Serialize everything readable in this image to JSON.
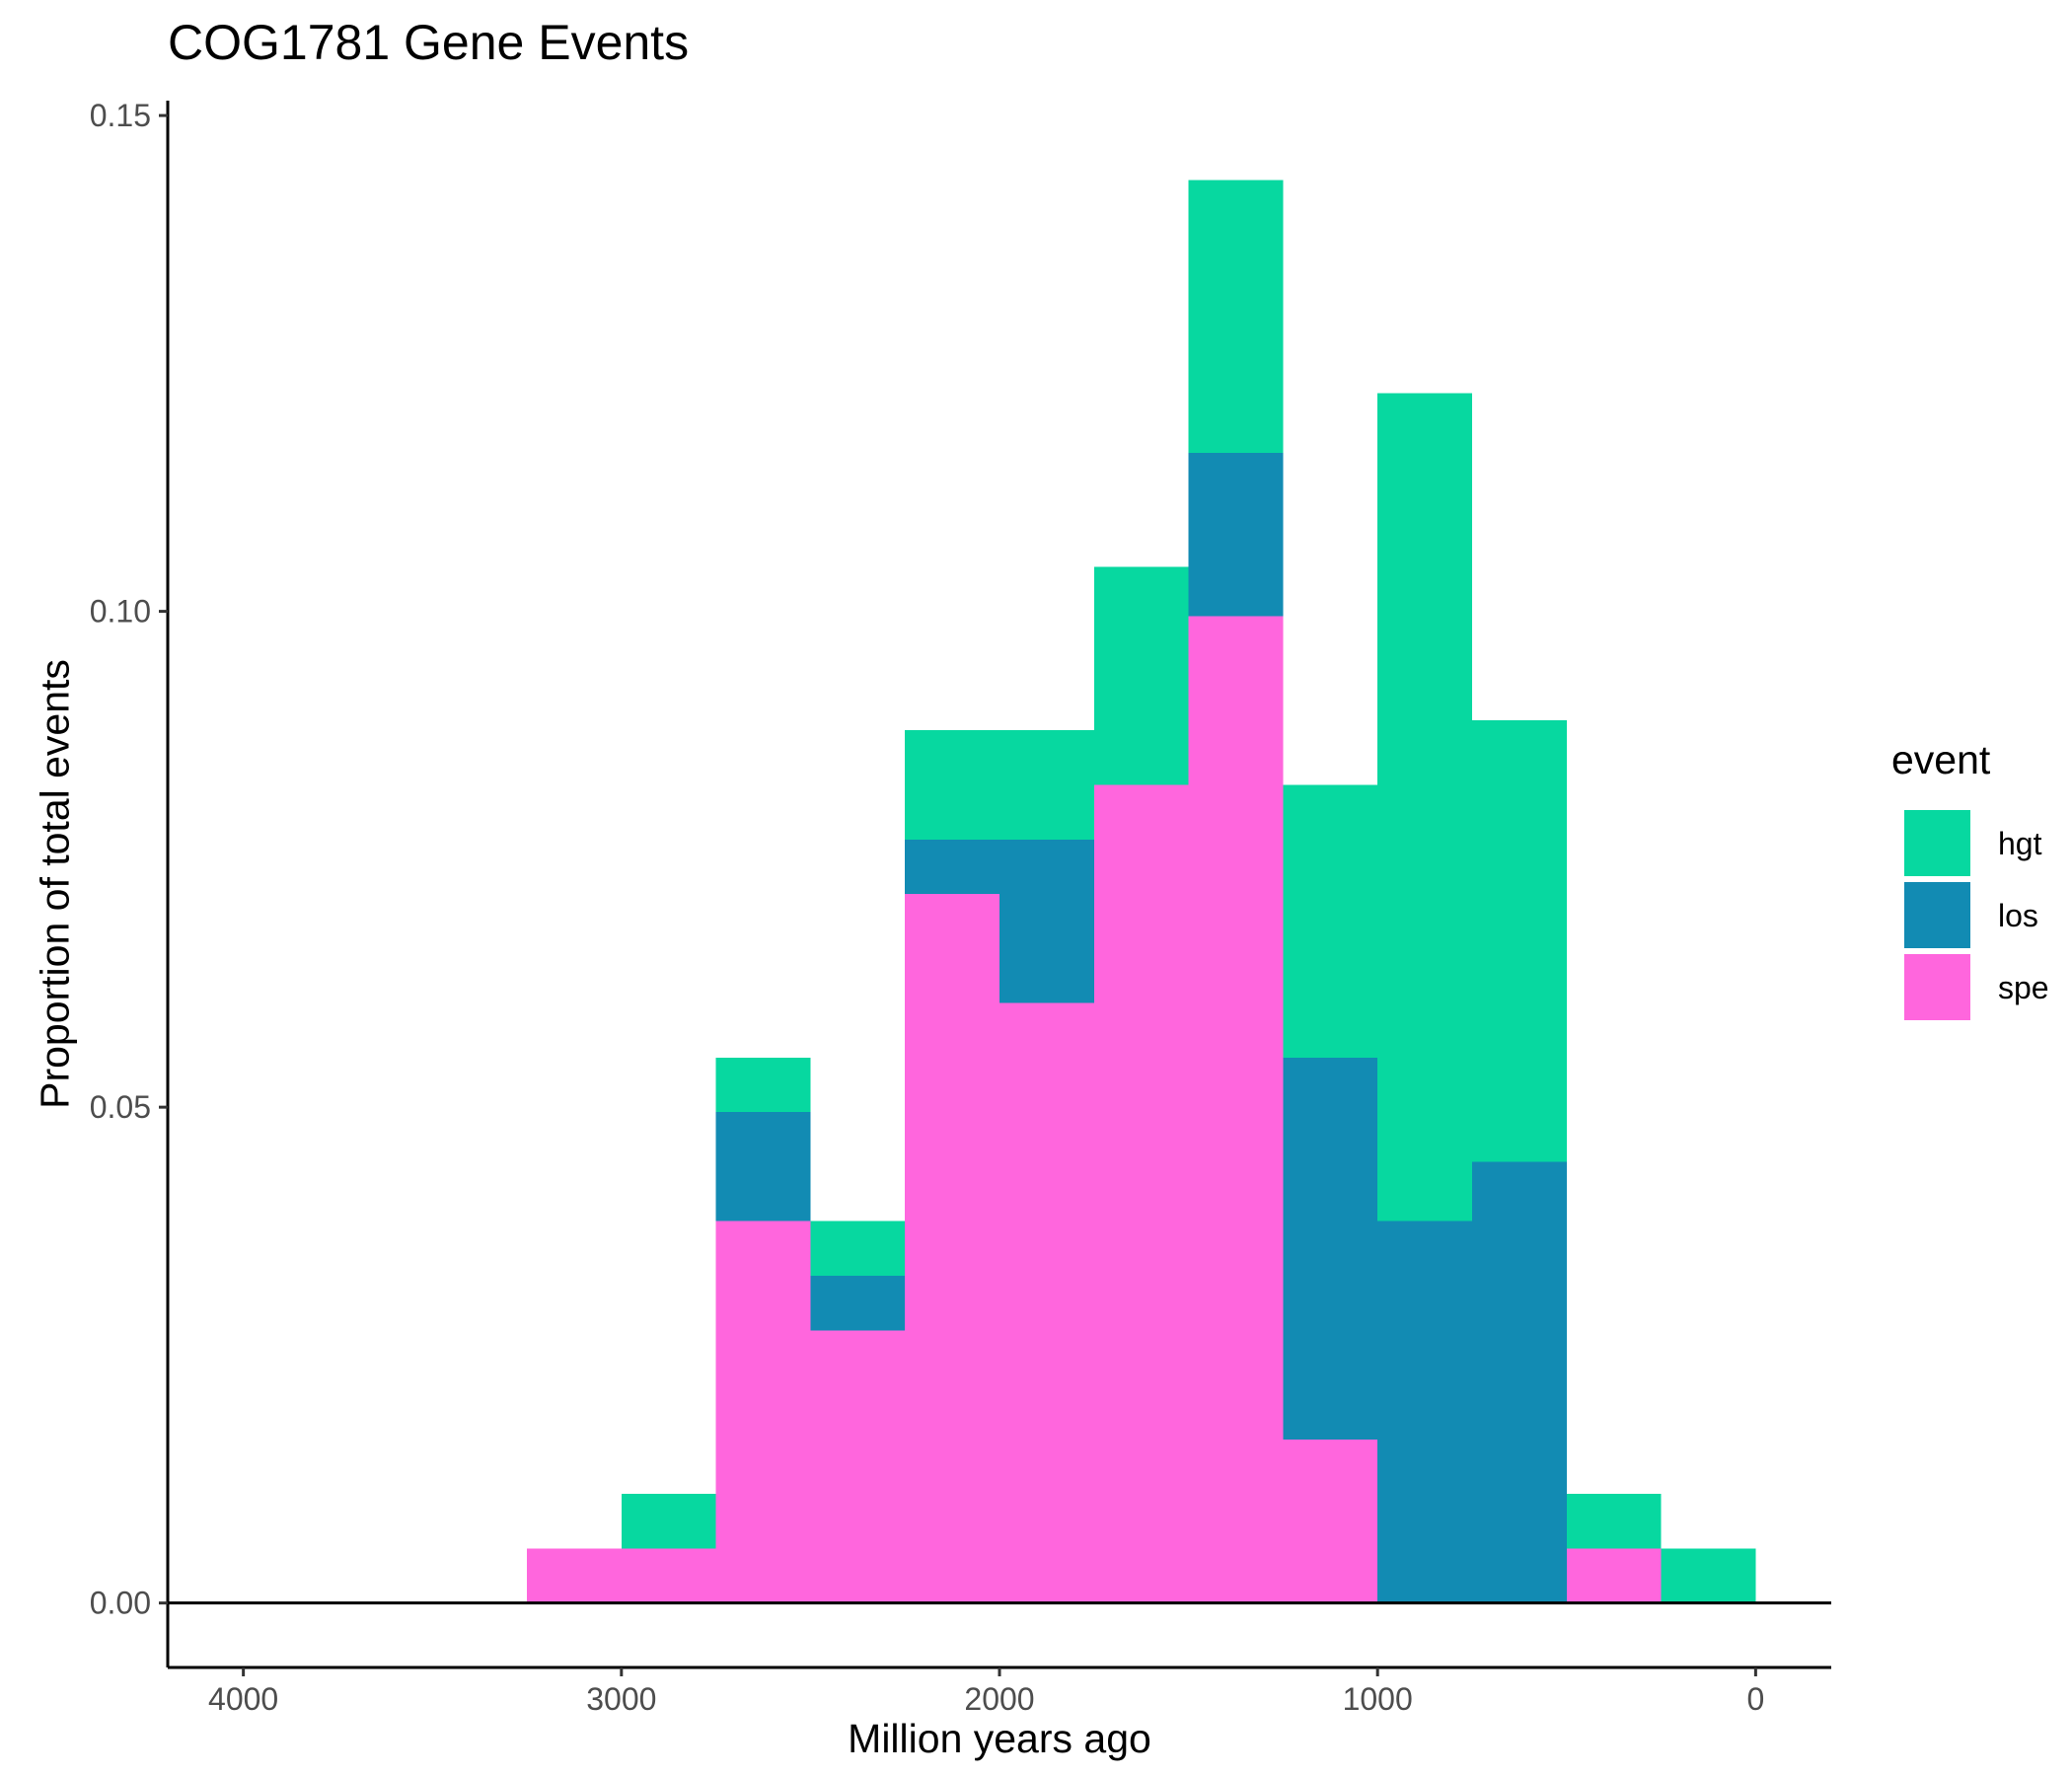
{
  "chart_data": {
    "type": "bar",
    "title": "COG1781 Gene Events",
    "xlabel": "Million years ago",
    "ylabel": "Proportion of total events",
    "x_reversed": true,
    "xlim": [
      4200,
      -200
    ],
    "ylim": [
      -0.0065,
      0.1515
    ],
    "x_ticks": [
      {
        "value": 4000,
        "label": "4000"
      },
      {
        "value": 3000,
        "label": "3000"
      },
      {
        "value": 2000,
        "label": "2000"
      },
      {
        "value": 1000,
        "label": "1000"
      },
      {
        "value": 0,
        "label": "0"
      }
    ],
    "y_ticks": [
      {
        "value": 0.0,
        "label": "0.00"
      },
      {
        "value": 0.05,
        "label": "0.05"
      },
      {
        "value": 0.1,
        "label": "0.10"
      },
      {
        "value": 0.15,
        "label": "0.15"
      }
    ],
    "bin_width": 250,
    "bins": [
      3125,
      2875,
      2625,
      2375,
      2125,
      1875,
      1625,
      1375,
      1125,
      875,
      625,
      375,
      125
    ],
    "series": [
      {
        "name": "hgt",
        "color": "#07D8A0",
        "values": [
          0.0,
          0.0055,
          0.0055,
          0.0055,
          0.011,
          0.011,
          0.022,
          0.0275,
          0.0275,
          0.0835,
          0.0445,
          0.0055,
          0.0055
        ]
      },
      {
        "name": "los",
        "color": "#128BB3",
        "values": [
          0.0,
          0.0,
          0.011,
          0.0055,
          0.0055,
          0.0165,
          0.0,
          0.0165,
          0.0385,
          0.0385,
          0.0445,
          0.0,
          0.0
        ]
      },
      {
        "name": "spe",
        "color": "#FF66DD",
        "values": [
          0.0055,
          0.0055,
          0.0385,
          0.0275,
          0.0715,
          0.0605,
          0.0825,
          0.0995,
          0.0165,
          0.0,
          0.0,
          0.0055,
          0.0
        ]
      }
    ],
    "zero_line": true,
    "grid": false,
    "legend": {
      "title": "event",
      "position": "right"
    }
  }
}
